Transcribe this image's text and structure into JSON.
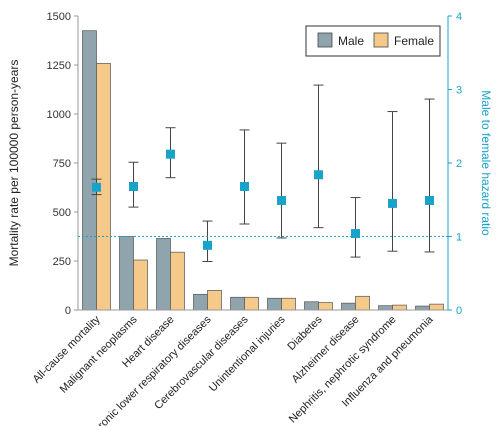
{
  "chart_data": {
    "type": "bar",
    "categories": [
      "All-cause mortality",
      "Malignant neoplasms",
      "Heart disease",
      "Chronic lower respiratory diseases",
      "Cerebrovascular diseases",
      "Unintentional injuries",
      "Diabetes",
      "Alzheimer disease",
      "Nephritis, nephrotic syndrome",
      "Influenza and pneumonia"
    ],
    "series": [
      {
        "name": "Male",
        "color": "#8fa4ad",
        "values": [
          1425,
          375,
          365,
          80,
          65,
          60,
          42,
          35,
          22,
          20
        ]
      },
      {
        "name": "Female",
        "color": "#f5c98a",
        "values": [
          1258,
          255,
          295,
          100,
          65,
          60,
          38,
          70,
          25,
          30
        ]
      }
    ],
    "hazard_ratio": {
      "color": "#1aa3c8",
      "points": [
        {
          "value": 1.67,
          "lower": 1.57,
          "upper": 1.78
        },
        {
          "value": 1.68,
          "lower": 1.4,
          "upper": 2.01
        },
        {
          "value": 2.12,
          "lower": 1.8,
          "upper": 2.48
        },
        {
          "value": 0.88,
          "lower": 0.66,
          "upper": 1.21
        },
        {
          "value": 1.68,
          "lower": 1.17,
          "upper": 2.45
        },
        {
          "value": 1.49,
          "lower": 0.98,
          "upper": 2.27
        },
        {
          "value": 1.84,
          "lower": 1.12,
          "upper": 3.06
        },
        {
          "value": 1.04,
          "lower": 0.72,
          "upper": 1.53
        },
        {
          "value": 1.45,
          "lower": 0.8,
          "upper": 2.7
        },
        {
          "value": 1.49,
          "lower": 0.79,
          "upper": 2.87
        }
      ],
      "reference_line": 1
    },
    "ylabel": "Mortality rate per 100000 person-years",
    "y2label": "Male to female hazard ratio",
    "ylim": [
      0,
      1500
    ],
    "y2lim": [
      0,
      4
    ],
    "yticks": [
      "0",
      "250",
      "500",
      "750",
      "1000",
      "1250",
      "1500"
    ],
    "y2ticks": [
      "0",
      "1",
      "2",
      "3",
      "4"
    ],
    "legend_position": "top-right",
    "grid": false
  }
}
